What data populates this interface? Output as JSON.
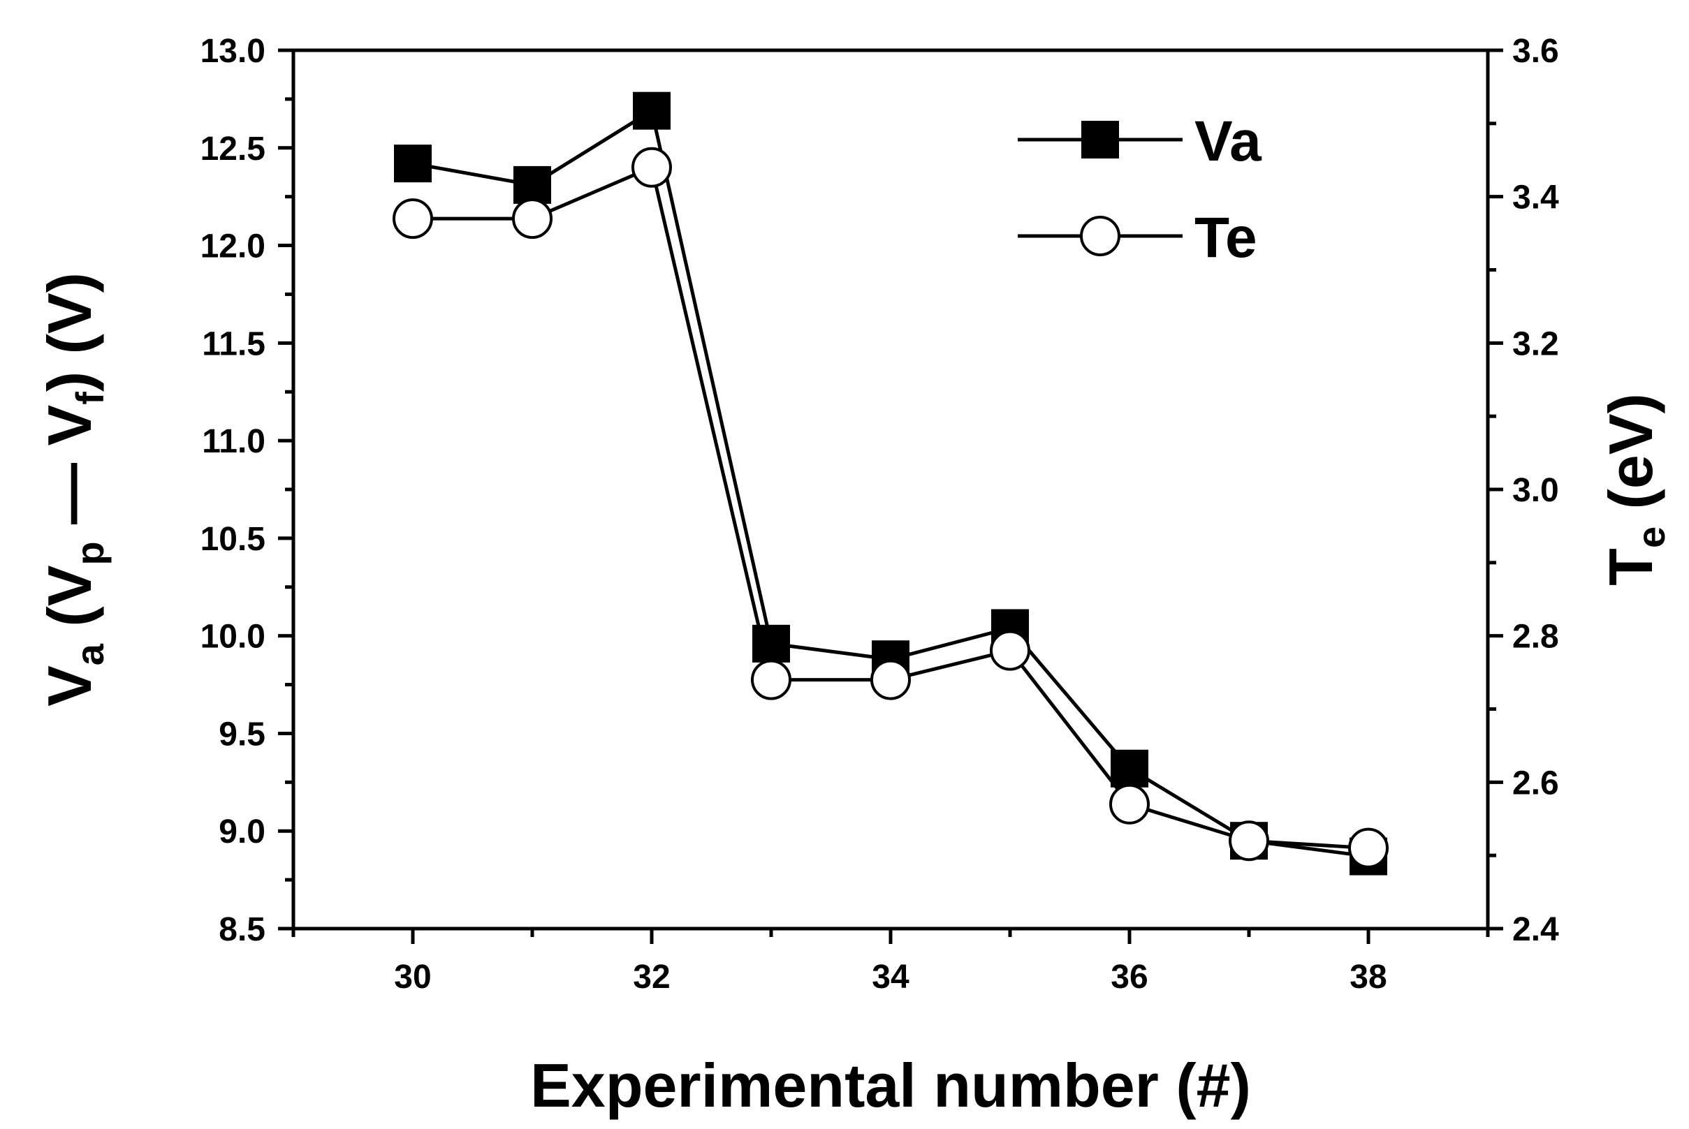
{
  "chart_data": {
    "type": "line",
    "title": "",
    "xlabel": "Experimental number (#)",
    "ylabel": {
      "parts": [
        "V",
        "a",
        " (V",
        "p",
        " — V",
        "f",
        ")  (V)"
      ]
    },
    "ylabel_right": {
      "parts": [
        "T",
        "e",
        " (eV)"
      ]
    },
    "x": [
      30,
      31,
      32,
      33,
      34,
      35,
      36,
      37,
      38
    ],
    "xlim": [
      29,
      39
    ],
    "xticks": [
      "30",
      "32",
      "34",
      "36",
      "38"
    ],
    "ylim": [
      8.5,
      13.0
    ],
    "yticks": [
      "8.5",
      "9.0",
      "9.5",
      "10.0",
      "10.5",
      "11.0",
      "11.5",
      "12.0",
      "12.5",
      "13.0"
    ],
    "ylim_right": [
      2.4,
      3.6
    ],
    "yticks_right": [
      "2.4",
      "2.6",
      "2.8",
      "3.0",
      "3.2",
      "3.4",
      "3.6"
    ],
    "legend_position": "top-right",
    "series": [
      {
        "name": "Va",
        "axis": "left",
        "marker": "filled-square",
        "values": [
          12.42,
          12.31,
          12.69,
          9.96,
          9.88,
          10.04,
          9.32,
          8.95,
          8.87
        ]
      },
      {
        "name": "Te",
        "axis": "right",
        "marker": "open-circle",
        "values": [
          3.37,
          3.37,
          3.44,
          2.74,
          2.74,
          2.78,
          2.57,
          2.52,
          2.51
        ]
      }
    ]
  }
}
